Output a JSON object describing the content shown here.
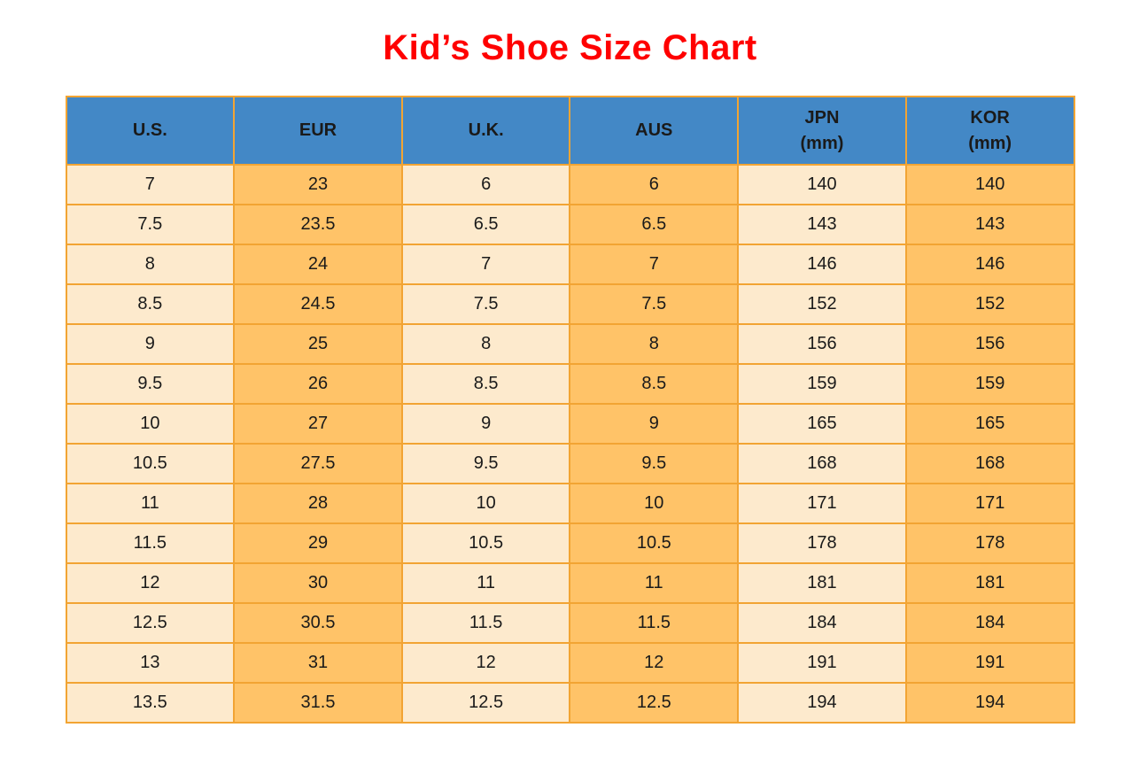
{
  "page": {
    "title": "Kid’s Shoe Size Chart"
  },
  "colors": {
    "title": "#ff0000",
    "header_bg": "#4388c6",
    "cell_light": "#fdeacd",
    "cell_accent": "#ffc368",
    "border": "#f2a433",
    "text": "#1a1a1a",
    "page_bg": "#ffffff"
  },
  "chart_data": {
    "type": "table",
    "title": "Kid’s Shoe Size Chart",
    "columns": [
      "U.S.",
      "EUR",
      "U.K.",
      "AUS",
      "JPN\n(mm)",
      "KOR\n(mm)"
    ],
    "rows": [
      [
        "7",
        "23",
        "6",
        "6",
        "140",
        "140"
      ],
      [
        "7.5",
        "23.5",
        "6.5",
        "6.5",
        "143",
        "143"
      ],
      [
        "8",
        "24",
        "7",
        "7",
        "146",
        "146"
      ],
      [
        "8.5",
        "24.5",
        "7.5",
        "7.5",
        "152",
        "152"
      ],
      [
        "9",
        "25",
        "8",
        "8",
        "156",
        "156"
      ],
      [
        "9.5",
        "26",
        "8.5",
        "8.5",
        "159",
        "159"
      ],
      [
        "10",
        "27",
        "9",
        "9",
        "165",
        "165"
      ],
      [
        "10.5",
        "27.5",
        "9.5",
        "9.5",
        "168",
        "168"
      ],
      [
        "11",
        "28",
        "10",
        "10",
        "171",
        "171"
      ],
      [
        "11.5",
        "29",
        "10.5",
        "10.5",
        "178",
        "178"
      ],
      [
        "12",
        "30",
        "11",
        "11",
        "181",
        "181"
      ],
      [
        "12.5",
        "30.5",
        "11.5",
        "11.5",
        "184",
        "184"
      ],
      [
        "13",
        "31",
        "12",
        "12",
        "191",
        "191"
      ],
      [
        "13.5",
        "31.5",
        "12.5",
        "12.5",
        "194",
        "194"
      ]
    ],
    "layout_hints": {
      "header_row_color": "blue",
      "column_fill_pattern": [
        "light",
        "accent",
        "light",
        "accent",
        "light",
        "accent"
      ],
      "grid": "on"
    }
  }
}
